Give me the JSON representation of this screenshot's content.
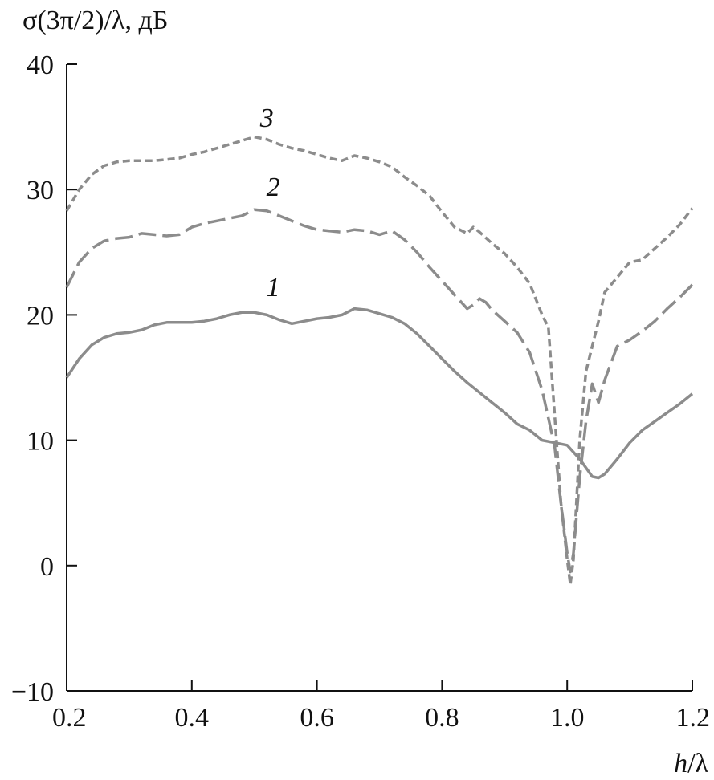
{
  "chart_data": {
    "type": "line",
    "ylabel": "σ(3π/2)/λ, дБ",
    "xlabel_italic": "h",
    "xlabel_rest": "/λ",
    "xlim": [
      0.2,
      1.2
    ],
    "ylim": [
      -10,
      40
    ],
    "xticks": [
      0.2,
      0.4,
      0.6,
      0.8,
      1.0,
      1.2
    ],
    "xtick_labels": [
      "0.2",
      "0.4",
      "0.6",
      "0.8",
      "1.0",
      "1.2"
    ],
    "yticks": [
      -10,
      0,
      10,
      20,
      30,
      40
    ],
    "ytick_labels": [
      "−10",
      "0",
      "10",
      "20",
      "30",
      "40"
    ],
    "grid": false,
    "color": "#8c8c8c",
    "series": [
      {
        "label": "1",
        "label_pos": [
          0.53,
          21.5
        ],
        "style": "solid",
        "x": [
          0.2,
          0.22,
          0.24,
          0.26,
          0.28,
          0.3,
          0.32,
          0.34,
          0.36,
          0.38,
          0.4,
          0.42,
          0.44,
          0.46,
          0.48,
          0.5,
          0.52,
          0.54,
          0.56,
          0.58,
          0.6,
          0.62,
          0.64,
          0.66,
          0.68,
          0.7,
          0.72,
          0.74,
          0.76,
          0.78,
          0.8,
          0.82,
          0.84,
          0.86,
          0.88,
          0.9,
          0.92,
          0.94,
          0.96,
          0.98,
          1.0,
          1.02,
          1.04,
          1.05,
          1.06,
          1.08,
          1.1,
          1.12,
          1.14,
          1.16,
          1.18,
          1.2
        ],
        "y": [
          15.0,
          16.5,
          17.6,
          18.2,
          18.5,
          18.6,
          18.8,
          19.2,
          19.4,
          19.4,
          19.4,
          19.5,
          19.7,
          20.0,
          20.2,
          20.2,
          20.0,
          19.6,
          19.3,
          19.5,
          19.7,
          19.8,
          20.0,
          20.5,
          20.4,
          20.1,
          19.8,
          19.3,
          18.5,
          17.5,
          16.5,
          15.5,
          14.6,
          13.8,
          13.0,
          12.2,
          11.3,
          10.8,
          10.0,
          9.8,
          9.6,
          8.5,
          7.1,
          7.0,
          7.3,
          8.5,
          9.8,
          10.8,
          11.5,
          12.2,
          12.9,
          13.7
        ]
      },
      {
        "label": "2",
        "label_pos": [
          0.53,
          29.5
        ],
        "style": "dashed",
        "x": [
          0.2,
          0.22,
          0.24,
          0.26,
          0.28,
          0.3,
          0.32,
          0.34,
          0.36,
          0.38,
          0.4,
          0.42,
          0.44,
          0.46,
          0.48,
          0.5,
          0.52,
          0.54,
          0.56,
          0.58,
          0.6,
          0.62,
          0.64,
          0.66,
          0.68,
          0.7,
          0.72,
          0.74,
          0.76,
          0.78,
          0.8,
          0.82,
          0.84,
          0.85,
          0.86,
          0.87,
          0.88,
          0.9,
          0.92,
          0.94,
          0.96,
          0.98,
          0.99,
          1.0,
          1.005,
          1.01,
          1.02,
          1.03,
          1.04,
          1.05,
          1.06,
          1.08,
          1.1,
          1.12,
          1.14,
          1.16,
          1.18,
          1.2
        ],
        "y": [
          22.2,
          24.2,
          25.3,
          25.9,
          26.1,
          26.2,
          26.5,
          26.4,
          26.3,
          26.4,
          27.0,
          27.3,
          27.5,
          27.7,
          27.9,
          28.4,
          28.3,
          27.9,
          27.5,
          27.1,
          26.8,
          26.7,
          26.6,
          26.8,
          26.7,
          26.4,
          26.7,
          26.0,
          25.0,
          23.8,
          22.7,
          21.6,
          20.5,
          20.8,
          21.3,
          21.0,
          20.4,
          19.5,
          18.6,
          17.0,
          14.0,
          9.5,
          5.0,
          1.0,
          -0.5,
          1.0,
          7.0,
          11.5,
          14.5,
          13.0,
          14.8,
          17.5,
          18.0,
          18.7,
          19.5,
          20.5,
          21.4,
          22.4
        ]
      },
      {
        "label": "3",
        "label_pos": [
          0.52,
          35.0
        ],
        "style": "dotted",
        "x": [
          0.2,
          0.22,
          0.24,
          0.26,
          0.28,
          0.3,
          0.32,
          0.34,
          0.36,
          0.38,
          0.4,
          0.42,
          0.44,
          0.46,
          0.48,
          0.5,
          0.52,
          0.54,
          0.56,
          0.58,
          0.6,
          0.62,
          0.64,
          0.66,
          0.68,
          0.7,
          0.72,
          0.74,
          0.76,
          0.78,
          0.8,
          0.82,
          0.84,
          0.85,
          0.86,
          0.88,
          0.9,
          0.92,
          0.94,
          0.96,
          0.97,
          0.98,
          0.99,
          1.0,
          1.005,
          1.01,
          1.02,
          1.03,
          1.04,
          1.05,
          1.06,
          1.08,
          1.1,
          1.12,
          1.14,
          1.16,
          1.18,
          1.2
        ],
        "y": [
          28.3,
          30.0,
          31.2,
          31.9,
          32.2,
          32.3,
          32.3,
          32.3,
          32.4,
          32.5,
          32.8,
          33.0,
          33.3,
          33.6,
          33.9,
          34.2,
          34.0,
          33.6,
          33.3,
          33.1,
          32.8,
          32.5,
          32.3,
          32.7,
          32.5,
          32.2,
          31.8,
          31.0,
          30.3,
          29.5,
          28.2,
          27.0,
          26.5,
          27.0,
          26.6,
          25.7,
          24.9,
          23.8,
          22.5,
          20.0,
          19.0,
          12.0,
          5.0,
          0.5,
          -1.5,
          0.5,
          10.0,
          15.5,
          17.5,
          19.5,
          21.8,
          23.0,
          24.2,
          24.4,
          25.3,
          26.2,
          27.2,
          28.5
        ]
      }
    ]
  }
}
